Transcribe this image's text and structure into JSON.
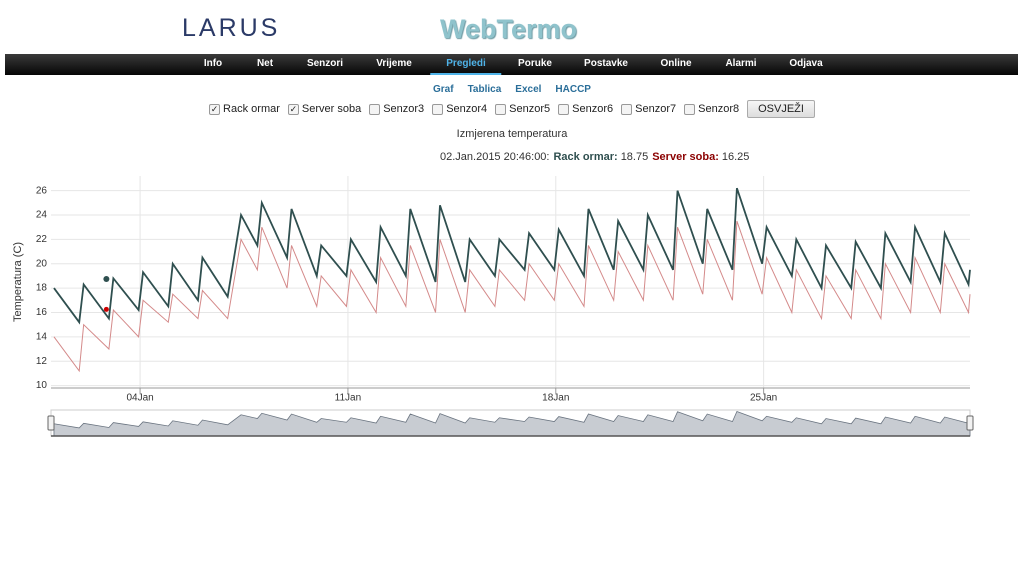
{
  "header": {
    "logo": "LARUS",
    "app_title": "WebTermo"
  },
  "nav": [
    "Info",
    "Net",
    "Senzori",
    "Vrijeme",
    "Pregledi",
    "Poruke",
    "Postavke",
    "Online",
    "Alarmi",
    "Odjava"
  ],
  "nav_active": 4,
  "subnav": [
    "Graf",
    "Tablica",
    "Excel",
    "HACCP"
  ],
  "sensors": [
    {
      "label": "Rack ormar",
      "checked": true
    },
    {
      "label": "Server soba",
      "checked": true
    },
    {
      "label": "Senzor3",
      "checked": false
    },
    {
      "label": "Senzor4",
      "checked": false
    },
    {
      "label": "Senzor5",
      "checked": false
    },
    {
      "label": "Senzor6",
      "checked": false
    },
    {
      "label": "Senzor7",
      "checked": false
    },
    {
      "label": "Senzor8",
      "checked": false
    }
  ],
  "refresh_button": "OSVJEŽI",
  "chart": {
    "type": "line",
    "title": "Izmjerena temperatura",
    "y_label": "Temperatura (C)",
    "readout": {
      "time": "02.Jan.2015 20:46:00:",
      "items": [
        {
          "name": "Rack ormar:",
          "value": 18.75,
          "color": "#2f4f4f"
        },
        {
          "name": "Server soba:",
          "value": 16.25,
          "color": "#8b0000"
        }
      ]
    },
    "xlim": [
      1,
      31.95
    ],
    "ylim": [
      9.8,
      27.2
    ],
    "xticks": [
      {
        "value": 4,
        "label": "04Jan"
      },
      {
        "value": 11,
        "label": "11Jan"
      },
      {
        "value": 18,
        "label": "18Jan"
      },
      {
        "value": 25,
        "label": "25Jan"
      }
    ],
    "yticks": [
      10,
      12,
      14,
      16,
      18,
      20,
      22,
      24,
      26
    ],
    "grid": true,
    "x": [
      1.1,
      1.95,
      2.1,
      2.95,
      3.1,
      3.95,
      4.1,
      4.95,
      5.1,
      5.95,
      6.1,
      6.95,
      7.4,
      7.95,
      8.1,
      8.95,
      9.1,
      9.95,
      10.1,
      10.95,
      11.1,
      11.95,
      12.1,
      12.95,
      13.1,
      13.95,
      14.1,
      14.95,
      15.1,
      15.95,
      16.1,
      16.95,
      17.1,
      17.95,
      18.1,
      18.95,
      19.1,
      19.95,
      20.1,
      20.95,
      21.1,
      21.95,
      22.1,
      22.95,
      23.1,
      23.95,
      24.1,
      24.95,
      25.1,
      25.95,
      26.1,
      26.95,
      27.1,
      27.95,
      28.1,
      28.95,
      29.1,
      29.95,
      30.1,
      30.95,
      31.1,
      31.9,
      31.95
    ],
    "series": [
      {
        "name": "Rack ormar",
        "color": "#2f4f4f",
        "values": [
          18,
          15.2,
          18.3,
          15.5,
          18.8,
          16.2,
          19.3,
          16.5,
          20,
          17,
          20.5,
          17.3,
          24,
          21.5,
          25,
          20.5,
          24.5,
          19,
          21.5,
          19,
          22,
          18.5,
          23,
          19,
          24.5,
          18.5,
          24.8,
          18.5,
          22,
          19,
          22,
          19.5,
          22.5,
          19.5,
          22.8,
          19,
          24.5,
          19.5,
          23.5,
          19.5,
          24,
          19.5,
          26,
          20,
          24.5,
          19.5,
          26.2,
          20,
          23,
          19,
          22,
          18,
          21.5,
          18,
          21.8,
          18,
          22.5,
          18.5,
          23,
          18.5,
          22.5,
          18.3,
          19.5
        ]
      },
      {
        "name": "Server soba",
        "color": "#d48a8a",
        "values": [
          14,
          11.2,
          15,
          13,
          16.2,
          14,
          17,
          15.2,
          17.5,
          15.5,
          17.8,
          15.5,
          22,
          19.5,
          23,
          18,
          21.5,
          16.5,
          19,
          16.5,
          19.5,
          16,
          20.5,
          16.5,
          21.5,
          16,
          22,
          16,
          19.5,
          16.5,
          19.5,
          17,
          20,
          17,
          20,
          16.5,
          21.5,
          17,
          21,
          17,
          21.5,
          17,
          23,
          17.5,
          22,
          17,
          23.5,
          17.5,
          20.5,
          16,
          19.5,
          15.5,
          19,
          15.5,
          19.5,
          15.5,
          20,
          16,
          20.5,
          16,
          20,
          16,
          17.5
        ]
      }
    ]
  }
}
